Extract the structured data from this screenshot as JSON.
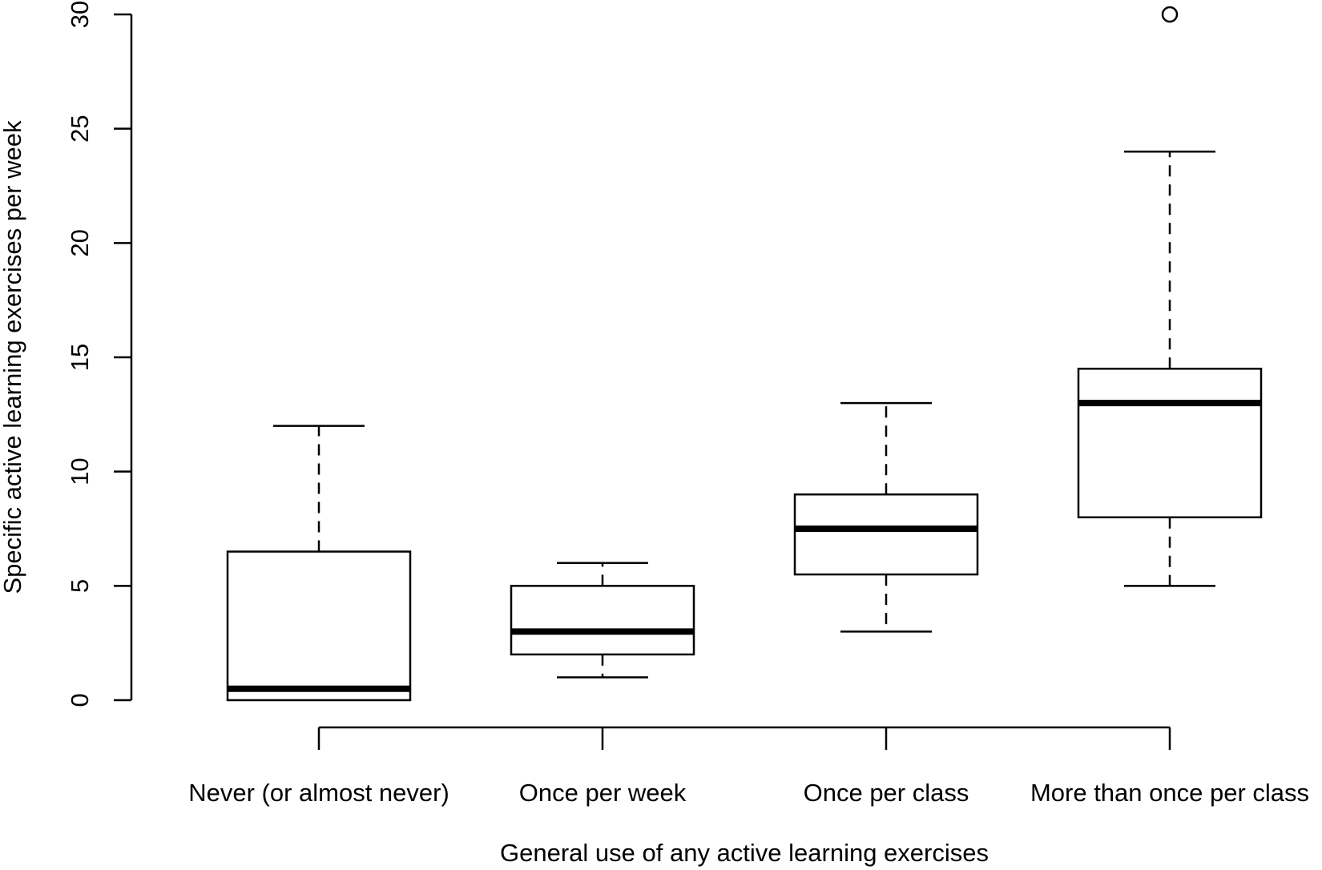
{
  "chart_data": {
    "type": "boxplot",
    "title": "",
    "xlabel": "General use of any active learning exercises",
    "ylabel": "Specific active learning exercises per week",
    "ylim": [
      0,
      30
    ],
    "yticks": [
      "0",
      "5",
      "10",
      "15",
      "20",
      "25",
      "30"
    ],
    "categories": [
      "Never (or almost never)",
      "Once per week",
      "Once per class",
      "More than once per class"
    ],
    "boxes": [
      {
        "category": "Never (or almost never)",
        "whisker_low": 0,
        "q1": 0,
        "median": 0.5,
        "q3": 6.5,
        "whisker_high": 12,
        "outliers": []
      },
      {
        "category": "Once per week",
        "whisker_low": 1,
        "q1": 2,
        "median": 3,
        "q3": 5,
        "whisker_high": 6,
        "outliers": []
      },
      {
        "category": "Once per class",
        "whisker_low": 3,
        "q1": 5.5,
        "median": 7.5,
        "q3": 9,
        "whisker_high": 13,
        "outliers": []
      },
      {
        "category": "More than once per class",
        "whisker_low": 5,
        "q1": 8,
        "median": 13,
        "q3": 14.5,
        "whisker_high": 24,
        "outliers": [
          30
        ]
      }
    ],
    "grid": false,
    "legend": "none",
    "colors": {
      "line": "#000000",
      "box_fill": "#ffffff",
      "background": "#ffffff"
    }
  }
}
